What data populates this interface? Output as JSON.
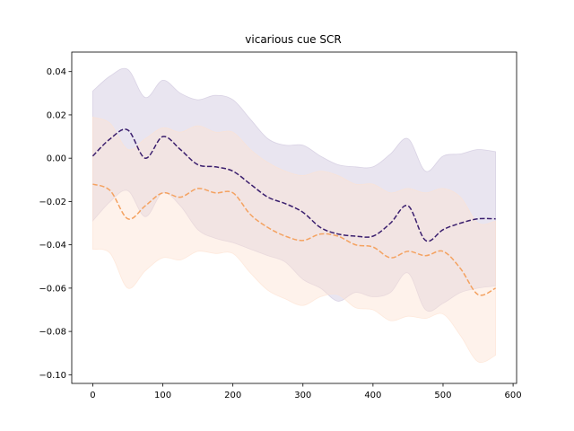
{
  "chart_data": {
    "type": "line",
    "title": "vicarious cue SCR",
    "xlabel": "",
    "ylabel": "",
    "xlim": [
      -30,
      605
    ],
    "ylim": [
      -0.104,
      0.049
    ],
    "xticks": [
      0,
      100,
      200,
      300,
      400,
      500,
      600
    ],
    "yticks": [
      -0.1,
      -0.08,
      -0.06,
      -0.04,
      -0.02,
      0.0,
      0.02,
      0.04
    ],
    "x": [
      0,
      25,
      50,
      75,
      100,
      125,
      150,
      175,
      200,
      225,
      250,
      275,
      300,
      325,
      350,
      375,
      400,
      425,
      450,
      475,
      500,
      525,
      550,
      575
    ],
    "series": [
      {
        "color": "#3b1f6e",
        "band_color": "#cfc6dd",
        "linestyle": "dashed",
        "values": [
          0.001,
          0.009,
          0.013,
          0.0,
          0.01,
          0.004,
          -0.003,
          -0.004,
          -0.006,
          -0.012,
          -0.018,
          -0.021,
          -0.025,
          -0.032,
          -0.035,
          -0.036,
          -0.036,
          -0.03,
          -0.022,
          -0.038,
          -0.033,
          -0.03,
          -0.028,
          -0.028
        ],
        "upper": [
          0.031,
          0.038,
          0.041,
          0.028,
          0.036,
          0.03,
          0.027,
          0.029,
          0.027,
          0.018,
          0.009,
          0.006,
          0.006,
          0.001,
          -0.003,
          -0.004,
          -0.004,
          0.002,
          0.009,
          -0.006,
          0.001,
          0.002,
          0.004,
          0.003
        ],
        "lower": [
          -0.029,
          -0.02,
          -0.015,
          -0.027,
          -0.016,
          -0.022,
          -0.033,
          -0.037,
          -0.039,
          -0.042,
          -0.045,
          -0.048,
          -0.056,
          -0.06,
          -0.066,
          -0.062,
          -0.064,
          -0.062,
          -0.053,
          -0.07,
          -0.067,
          -0.062,
          -0.06,
          -0.059
        ]
      },
      {
        "color": "#f4a261",
        "band_color": "#fde3d2",
        "linestyle": "dashed",
        "values": [
          -0.012,
          -0.015,
          -0.028,
          -0.022,
          -0.016,
          -0.018,
          -0.014,
          -0.016,
          -0.016,
          -0.026,
          -0.032,
          -0.036,
          -0.038,
          -0.035,
          -0.036,
          -0.04,
          -0.041,
          -0.046,
          -0.043,
          -0.045,
          -0.043,
          -0.051,
          -0.063,
          -0.06
        ],
        "upper": [
          0.019,
          0.016,
          0.004,
          0.009,
          0.014,
          0.012,
          0.015,
          0.012,
          0.012,
          0.004,
          -0.002,
          -0.006,
          -0.008,
          -0.006,
          -0.008,
          -0.012,
          -0.012,
          -0.016,
          -0.014,
          -0.016,
          -0.014,
          -0.018,
          -0.03,
          -0.029
        ],
        "lower": [
          -0.042,
          -0.044,
          -0.06,
          -0.052,
          -0.046,
          -0.047,
          -0.043,
          -0.044,
          -0.044,
          -0.053,
          -0.061,
          -0.065,
          -0.068,
          -0.064,
          -0.063,
          -0.069,
          -0.07,
          -0.075,
          -0.073,
          -0.074,
          -0.072,
          -0.082,
          -0.094,
          -0.091
        ]
      }
    ]
  }
}
